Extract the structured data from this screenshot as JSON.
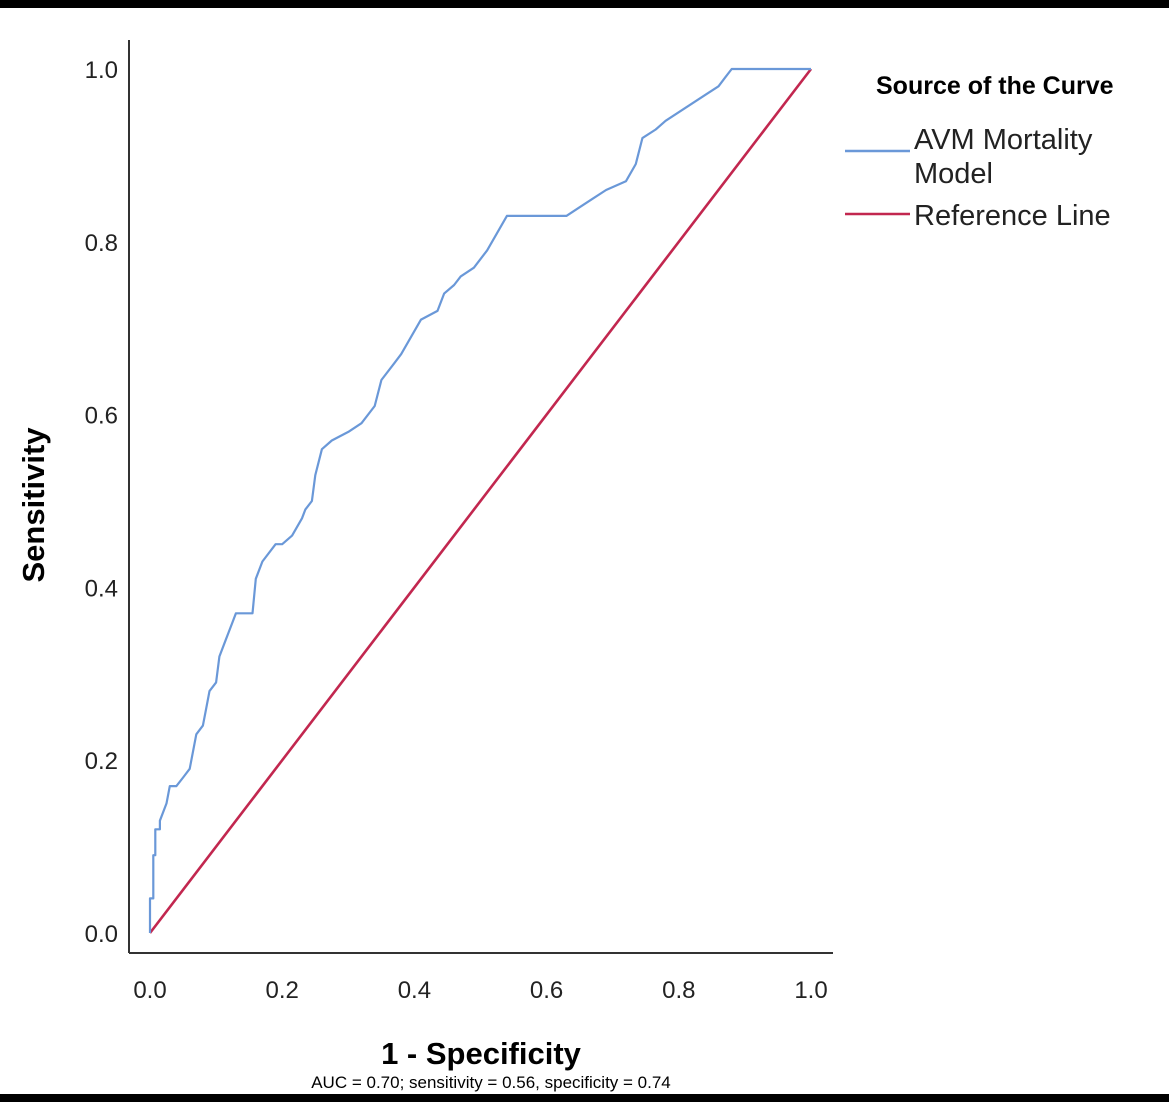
{
  "chart_data": {
    "type": "line",
    "xlabel": "1 - Specificity",
    "ylabel": "Sensitivity",
    "xlim": [
      0,
      1
    ],
    "ylim": [
      0,
      1
    ],
    "x_ticks": [
      "0.0",
      "0.2",
      "0.4",
      "0.6",
      "0.8",
      "1.0"
    ],
    "y_ticks": [
      "0.0",
      "0.2",
      "0.4",
      "0.6",
      "0.8",
      "1.0"
    ],
    "grid": false,
    "legend": {
      "title": "Source of the Curve",
      "position": "top-right",
      "entries": [
        {
          "label_lines": [
            "AVM Mortality",
            "Model"
          ],
          "color": "#6a98d8"
        },
        {
          "label_lines": [
            "Reference Line"
          ],
          "color": "#c2274f"
        }
      ]
    },
    "series": [
      {
        "name": "AVM Mortality Model",
        "color": "#6a98d8",
        "points": [
          [
            0,
            0
          ],
          [
            0,
            0.04
          ],
          [
            0.005,
            0.04
          ],
          [
            0.005,
            0.09
          ],
          [
            0.008,
            0.09
          ],
          [
            0.008,
            0.12
          ],
          [
            0.015,
            0.12
          ],
          [
            0.015,
            0.13
          ],
          [
            0.025,
            0.15
          ],
          [
            0.03,
            0.17
          ],
          [
            0.04,
            0.17
          ],
          [
            0.05,
            0.18
          ],
          [
            0.06,
            0.19
          ],
          [
            0.07,
            0.23
          ],
          [
            0.08,
            0.24
          ],
          [
            0.085,
            0.26
          ],
          [
            0.09,
            0.28
          ],
          [
            0.1,
            0.29
          ],
          [
            0.105,
            0.32
          ],
          [
            0.115,
            0.34
          ],
          [
            0.125,
            0.36
          ],
          [
            0.13,
            0.37
          ],
          [
            0.155,
            0.37
          ],
          [
            0.16,
            0.41
          ],
          [
            0.17,
            0.43
          ],
          [
            0.19,
            0.45
          ],
          [
            0.2,
            0.45
          ],
          [
            0.215,
            0.46
          ],
          [
            0.23,
            0.48
          ],
          [
            0.235,
            0.49
          ],
          [
            0.245,
            0.5
          ],
          [
            0.25,
            0.53
          ],
          [
            0.26,
            0.56
          ],
          [
            0.275,
            0.57
          ],
          [
            0.3,
            0.58
          ],
          [
            0.32,
            0.59
          ],
          [
            0.34,
            0.61
          ],
          [
            0.35,
            0.64
          ],
          [
            0.37,
            0.66
          ],
          [
            0.38,
            0.67
          ],
          [
            0.395,
            0.69
          ],
          [
            0.41,
            0.71
          ],
          [
            0.435,
            0.72
          ],
          [
            0.445,
            0.74
          ],
          [
            0.46,
            0.75
          ],
          [
            0.47,
            0.76
          ],
          [
            0.49,
            0.77
          ],
          [
            0.51,
            0.79
          ],
          [
            0.525,
            0.81
          ],
          [
            0.54,
            0.83
          ],
          [
            0.57,
            0.83
          ],
          [
            0.63,
            0.83
          ],
          [
            0.65,
            0.84
          ],
          [
            0.67,
            0.85
          ],
          [
            0.69,
            0.86
          ],
          [
            0.72,
            0.87
          ],
          [
            0.735,
            0.89
          ],
          [
            0.745,
            0.92
          ],
          [
            0.765,
            0.93
          ],
          [
            0.78,
            0.94
          ],
          [
            0.8,
            0.95
          ],
          [
            0.82,
            0.96
          ],
          [
            0.84,
            0.97
          ],
          [
            0.86,
            0.98
          ],
          [
            0.87,
            0.99
          ],
          [
            0.88,
            1.0
          ],
          [
            0.98,
            1.0
          ],
          [
            1.0,
            1.0
          ]
        ]
      },
      {
        "name": "Reference Line",
        "color": "#c2274f",
        "points": [
          [
            0,
            0
          ],
          [
            1,
            1
          ]
        ]
      }
    ],
    "caption": "AUC = 0.70; sensitivity = 0.56, specificity = 0.74"
  }
}
